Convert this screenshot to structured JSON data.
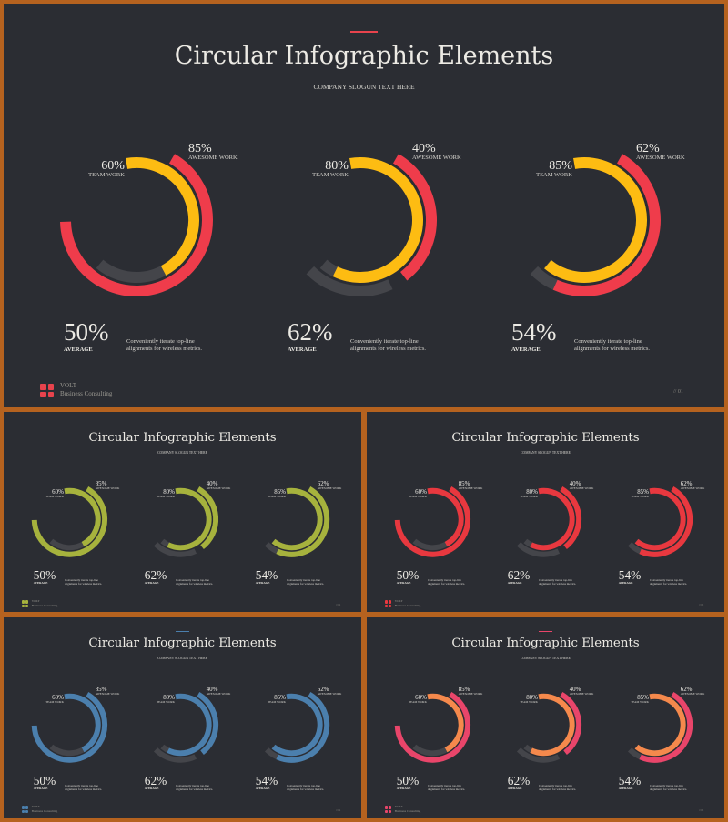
{
  "slide": {
    "title": "Circular Infographic Elements",
    "slogan": "COMPANY SLOGUN TEXT HERE",
    "brand_name": "VOLT",
    "brand_sub": "Business  Consulting",
    "page_number": "// 01",
    "description": "Conveniently iterate top-line alignments for wireless metrics.",
    "average_caption": "AVERAGE",
    "inner_caption": "TEAM WORK",
    "outer_caption": "AWESOME WORK"
  },
  "groups": [
    {
      "inner_pct": "60%",
      "outer_pct": "85%",
      "average": "50%",
      "inner_value": 0.6,
      "outer_value": 0.85
    },
    {
      "inner_pct": "80%",
      "outer_pct": "40%",
      "average": "62%",
      "inner_value": 0.8,
      "outer_value": 0.4
    },
    {
      "inner_pct": "85%",
      "outer_pct": "62%",
      "average": "54%",
      "inner_value": 0.85,
      "outer_value": 0.62
    }
  ],
  "variants": [
    {
      "name": "yellow-red",
      "inner_color": "#fdbc12",
      "outer_color": "#ef3c4b",
      "accent_color": "#e8434d",
      "logo_color": "#e8434d"
    },
    {
      "name": "green",
      "inner_color": "#a6b23d",
      "outer_color": "#a6b23d",
      "accent_color": "#a6b23d",
      "logo_color": "#a6b23d"
    },
    {
      "name": "red",
      "inner_color": "#e8383f",
      "outer_color": "#e8383f",
      "accent_color": "#e8383f",
      "logo_color": "#e8383f"
    },
    {
      "name": "blue",
      "inner_color": "#4b7fad",
      "outer_color": "#4b7fad",
      "accent_color": "#4b7fad",
      "logo_color": "#4b7fad"
    },
    {
      "name": "orange-pink",
      "inner_color": "#f5894c",
      "outer_color": "#e9456a",
      "accent_color": "#e9456a",
      "logo_color": "#e9456a"
    }
  ],
  "colors": {
    "background": "#2b2d33",
    "track": "#44454a",
    "frame": "#b5621f"
  }
}
